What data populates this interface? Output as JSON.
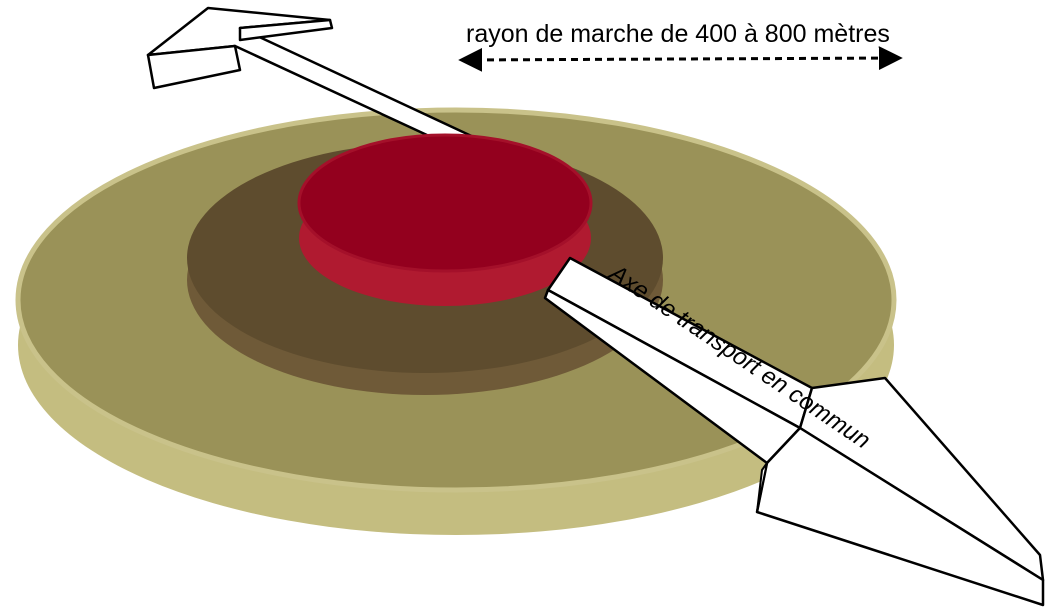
{
  "diagram": {
    "radius_label": "rayon de marche de 400 à 800 mètres",
    "axis_label": "Axe de transport en commun"
  },
  "colors": {
    "background": "#ffffff",
    "outer_disc": "#9a9258",
    "outer_disc_rim": "#c4bd80",
    "middle_disc": "#5e4c2e",
    "middle_disc_rim": "#6f5a38",
    "center_disc": "#93001e",
    "center_disc_rim": "#b01a30",
    "arrow_fill": "#ffffff",
    "arrow_stroke": "#000000"
  }
}
